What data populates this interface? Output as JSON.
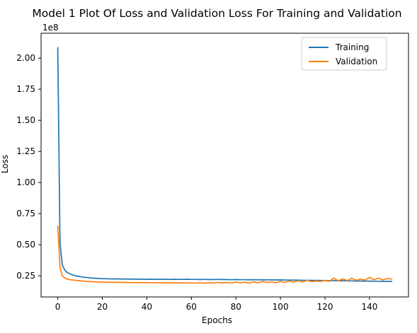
{
  "chart_data": {
    "type": "line",
    "title": "Model 1 Plot Of Loss and Validation Loss For Training and Validation",
    "xlabel": "Epochs",
    "ylabel": "Loss",
    "y_offset_text": "1e8",
    "xlim": [
      -7.5,
      157.5
    ],
    "ylim": [
      0.08,
      2.2
    ],
    "x_ticks": [
      0,
      20,
      40,
      60,
      80,
      100,
      120,
      140
    ],
    "x_tick_labels": [
      "0",
      "20",
      "40",
      "60",
      "80",
      "100",
      "120",
      "140"
    ],
    "y_ticks": [
      0.25,
      0.5,
      0.75,
      1.0,
      1.25,
      1.5,
      1.75,
      2.0
    ],
    "y_tick_labels": [
      "0.25",
      "0.50",
      "0.75",
      "1.00",
      "1.25",
      "1.50",
      "1.75",
      "2.00"
    ],
    "grid": false,
    "legend_position": "top-right",
    "series": [
      {
        "name": "Training",
        "color": "#1f77b4",
        "points": [
          [
            0,
            2.085
          ],
          [
            1,
            0.52
          ],
          [
            2,
            0.34
          ],
          [
            3,
            0.3
          ],
          [
            4,
            0.28
          ],
          [
            5,
            0.27
          ],
          [
            6,
            0.262
          ],
          [
            7,
            0.255
          ],
          [
            8,
            0.25
          ],
          [
            9,
            0.247
          ],
          [
            10,
            0.244
          ],
          [
            11,
            0.24
          ],
          [
            12,
            0.238
          ],
          [
            13,
            0.236
          ],
          [
            14,
            0.234
          ],
          [
            15,
            0.232
          ],
          [
            16,
            0.231
          ],
          [
            17,
            0.23
          ],
          [
            18,
            0.229
          ],
          [
            19,
            0.228
          ],
          [
            20,
            0.227
          ],
          [
            22,
            0.226
          ],
          [
            24,
            0.225
          ],
          [
            26,
            0.225
          ],
          [
            28,
            0.224
          ],
          [
            30,
            0.224
          ],
          [
            32,
            0.223
          ],
          [
            34,
            0.224
          ],
          [
            36,
            0.223
          ],
          [
            38,
            0.223
          ],
          [
            40,
            0.222
          ],
          [
            42,
            0.223
          ],
          [
            44,
            0.222
          ],
          [
            46,
            0.222
          ],
          [
            48,
            0.222
          ],
          [
            50,
            0.221
          ],
          [
            52,
            0.222
          ],
          [
            54,
            0.221
          ],
          [
            56,
            0.221
          ],
          [
            58,
            0.222
          ],
          [
            60,
            0.221
          ],
          [
            62,
            0.221
          ],
          [
            64,
            0.22
          ],
          [
            66,
            0.221
          ],
          [
            68,
            0.22
          ],
          [
            70,
            0.22
          ],
          [
            72,
            0.221
          ],
          [
            74,
            0.22
          ],
          [
            76,
            0.22
          ],
          [
            78,
            0.219
          ],
          [
            80,
            0.22
          ],
          [
            82,
            0.219
          ],
          [
            84,
            0.219
          ],
          [
            86,
            0.218
          ],
          [
            88,
            0.219
          ],
          [
            90,
            0.218
          ],
          [
            92,
            0.218
          ],
          [
            94,
            0.218
          ],
          [
            96,
            0.217
          ],
          [
            98,
            0.217
          ],
          [
            100,
            0.217
          ],
          [
            102,
            0.216
          ],
          [
            104,
            0.216
          ],
          [
            106,
            0.215
          ],
          [
            108,
            0.215
          ],
          [
            110,
            0.214
          ],
          [
            112,
            0.214
          ],
          [
            114,
            0.213
          ],
          [
            116,
            0.213
          ],
          [
            118,
            0.212
          ],
          [
            120,
            0.212
          ],
          [
            122,
            0.211
          ],
          [
            124,
            0.211
          ],
          [
            126,
            0.21
          ],
          [
            128,
            0.21
          ],
          [
            130,
            0.209
          ],
          [
            132,
            0.209
          ],
          [
            134,
            0.208
          ],
          [
            136,
            0.208
          ],
          [
            138,
            0.207
          ],
          [
            140,
            0.207
          ],
          [
            142,
            0.206
          ],
          [
            144,
            0.206
          ],
          [
            146,
            0.205
          ],
          [
            148,
            0.205
          ],
          [
            150,
            0.205
          ]
        ]
      },
      {
        "name": "Validation",
        "color": "#ff7f0e",
        "points": [
          [
            0,
            0.65
          ],
          [
            1,
            0.32
          ],
          [
            2,
            0.25
          ],
          [
            3,
            0.235
          ],
          [
            4,
            0.225
          ],
          [
            5,
            0.22
          ],
          [
            6,
            0.218
          ],
          [
            7,
            0.216
          ],
          [
            8,
            0.214
          ],
          [
            9,
            0.212
          ],
          [
            10,
            0.21
          ],
          [
            11,
            0.208
          ],
          [
            12,
            0.206
          ],
          [
            13,
            0.205
          ],
          [
            14,
            0.204
          ],
          [
            15,
            0.203
          ],
          [
            16,
            0.202
          ],
          [
            17,
            0.201
          ],
          [
            18,
            0.2
          ],
          [
            19,
            0.2
          ],
          [
            20,
            0.199
          ],
          [
            22,
            0.198
          ],
          [
            24,
            0.198
          ],
          [
            26,
            0.197
          ],
          [
            28,
            0.197
          ],
          [
            30,
            0.196
          ],
          [
            32,
            0.196
          ],
          [
            34,
            0.195
          ],
          [
            36,
            0.195
          ],
          [
            38,
            0.196
          ],
          [
            40,
            0.195
          ],
          [
            42,
            0.194
          ],
          [
            44,
            0.194
          ],
          [
            46,
            0.195
          ],
          [
            48,
            0.193
          ],
          [
            50,
            0.194
          ],
          [
            52,
            0.193
          ],
          [
            54,
            0.194
          ],
          [
            56,
            0.193
          ],
          [
            58,
            0.192
          ],
          [
            60,
            0.194
          ],
          [
            62,
            0.192
          ],
          [
            64,
            0.194
          ],
          [
            66,
            0.191
          ],
          [
            68,
            0.195
          ],
          [
            70,
            0.192
          ],
          [
            72,
            0.197
          ],
          [
            74,
            0.193
          ],
          [
            76,
            0.196
          ],
          [
            78,
            0.191
          ],
          [
            80,
            0.199
          ],
          [
            82,
            0.194
          ],
          [
            84,
            0.198
          ],
          [
            86,
            0.191
          ],
          [
            88,
            0.202
          ],
          [
            90,
            0.193
          ],
          [
            92,
            0.205
          ],
          [
            94,
            0.196
          ],
          [
            96,
            0.201
          ],
          [
            98,
            0.194
          ],
          [
            100,
            0.206
          ],
          [
            102,
            0.196
          ],
          [
            104,
            0.208
          ],
          [
            106,
            0.198
          ],
          [
            108,
            0.211
          ],
          [
            110,
            0.2
          ],
          [
            112,
            0.214
          ],
          [
            114,
            0.203
          ],
          [
            116,
            0.208
          ],
          [
            118,
            0.205
          ],
          [
            120,
            0.212
          ],
          [
            122,
            0.206
          ],
          [
            124,
            0.232
          ],
          [
            126,
            0.209
          ],
          [
            128,
            0.226
          ],
          [
            130,
            0.211
          ],
          [
            132,
            0.23
          ],
          [
            134,
            0.214
          ],
          [
            136,
            0.223
          ],
          [
            138,
            0.215
          ],
          [
            140,
            0.238
          ],
          [
            142,
            0.218
          ],
          [
            144,
            0.232
          ],
          [
            146,
            0.216
          ],
          [
            148,
            0.228
          ],
          [
            150,
            0.224
          ]
        ]
      }
    ]
  }
}
